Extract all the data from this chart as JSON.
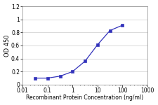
{
  "x": [
    0.032,
    0.1,
    0.32,
    1.0,
    3.2,
    10.0,
    32.0,
    100.0
  ],
  "y": [
    0.1,
    0.1,
    0.13,
    0.2,
    0.36,
    0.61,
    0.83,
    0.91
  ],
  "line_color": "#3333bb",
  "marker": "s",
  "marker_size": 2.5,
  "marker_facecolor": "#3333bb",
  "xlabel": "Recombinant Protein Concentration (ng/ml)",
  "ylabel": "OD 450",
  "xlim": [
    0.01,
    1000
  ],
  "ylim": [
    0,
    1.2
  ],
  "yticks": [
    0,
    0.2,
    0.4,
    0.6,
    0.8,
    1.0,
    1.2
  ],
  "ytick_labels": [
    "0",
    "0.2",
    "0.4",
    "0.6",
    "0.8",
    "1",
    "1.2"
  ],
  "xtick_vals": [
    0.01,
    0.1,
    1,
    10,
    100,
    1000
  ],
  "xtick_labels": [
    "0.01",
    "0.1",
    "1",
    "10",
    "100",
    "1000"
  ],
  "xlabel_fontsize": 5.5,
  "ylabel_fontsize": 6,
  "tick_fontsize": 5.5,
  "background_color": "#ffffff",
  "grid_color": "#cccccc",
  "line_width": 0.9
}
